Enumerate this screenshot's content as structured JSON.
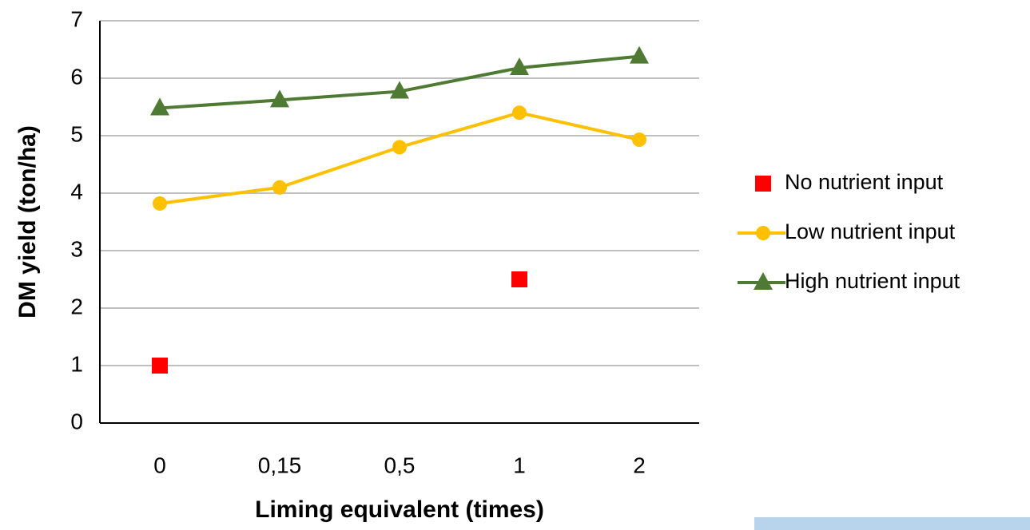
{
  "chart_data": {
    "type": "line",
    "x_label": "Liming equivalent (times)",
    "y_label": "DM yield (ton/ha)",
    "categories": [
      "0",
      "0,15",
      "0,5",
      "1",
      "2"
    ],
    "series": [
      {
        "name": "No nutrient input",
        "color": "#ff0000",
        "marker": "square",
        "line": false,
        "values": [
          1,
          null,
          null,
          2.5,
          null
        ]
      },
      {
        "name": "Low nutrient input",
        "color": "#ffc000",
        "marker": "circle",
        "line": true,
        "values": [
          3.82,
          4.1,
          4.8,
          5.4,
          4.93
        ]
      },
      {
        "name": "High nutrient input",
        "color": "#4e7a33",
        "marker": "triangle",
        "line": true,
        "values": [
          5.48,
          5.62,
          5.77,
          6.18,
          6.38
        ]
      }
    ],
    "ylim": [
      0,
      7
    ],
    "yticks": [
      0,
      1,
      2,
      3,
      4,
      5,
      6,
      7
    ],
    "grid": true,
    "legend": "right"
  }
}
